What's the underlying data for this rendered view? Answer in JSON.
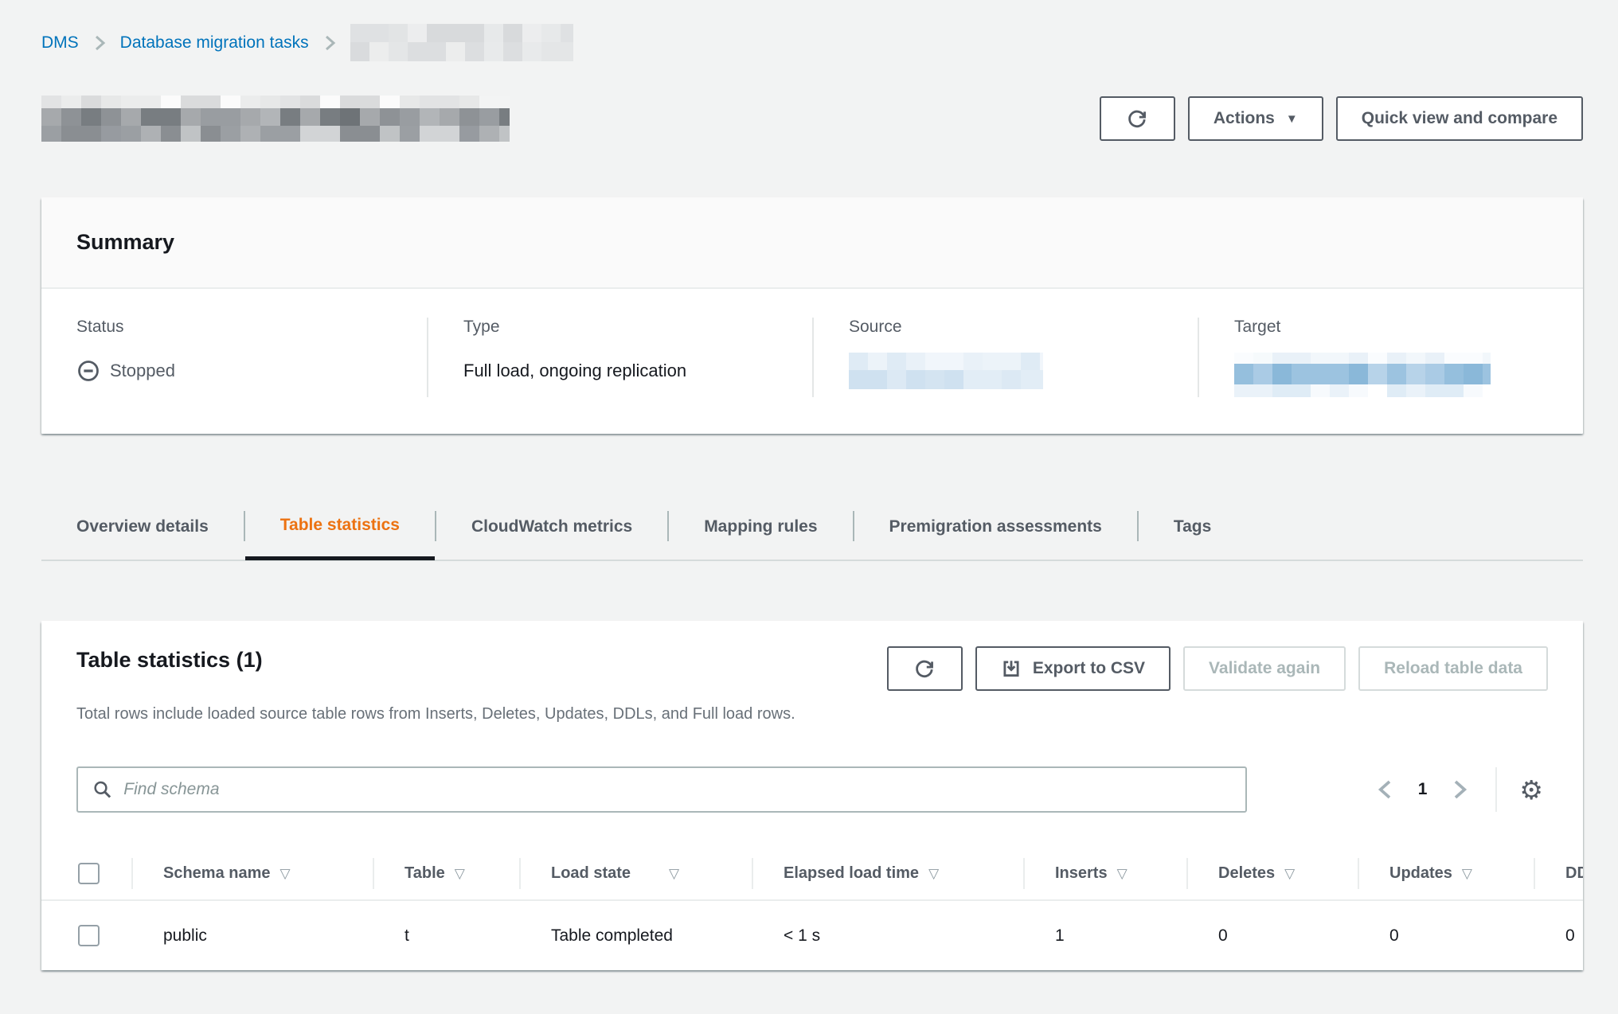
{
  "breadcrumb": {
    "dms": "DMS",
    "tasks": "Database migration tasks"
  },
  "page_actions": {
    "actions": "Actions",
    "quick_view": "Quick view and compare"
  },
  "summary": {
    "title": "Summary",
    "status_label": "Status",
    "status_value": "Stopped",
    "type_label": "Type",
    "type_value": "Full load, ongoing replication",
    "source_label": "Source",
    "target_label": "Target"
  },
  "tabs": {
    "overview": "Overview details",
    "table_stats": "Table statistics",
    "cloudwatch": "CloudWatch metrics",
    "mapping": "Mapping rules",
    "premigration": "Premigration assessments",
    "tags": "Tags"
  },
  "table_section": {
    "title": "Table statistics (1)",
    "description": "Total rows include loaded source table rows from Inserts, Deletes, Updates, DDLs, and Full load rows.",
    "export_label": "Export to CSV",
    "validate_label": "Validate again",
    "reload_label": "Reload table data",
    "search_placeholder": "Find schema",
    "page_number": "1",
    "columns": [
      "Schema name",
      "Table",
      "Load state",
      "Elapsed load time",
      "Inserts",
      "Deletes",
      "Updates",
      "DDLs"
    ],
    "row": [
      "public",
      "t",
      "Table completed",
      "< 1 s",
      "1",
      "0",
      "0",
      "0"
    ]
  },
  "icons": {
    "gear": "⚙",
    "caret_down": "▼",
    "sort_down": "▽"
  },
  "colors": {
    "accent_orange": "#ec7211",
    "link_blue": "#0073bb",
    "text_dark": "#16191f",
    "text_gray": "#545b64",
    "page_background": "#f2f3f3"
  }
}
